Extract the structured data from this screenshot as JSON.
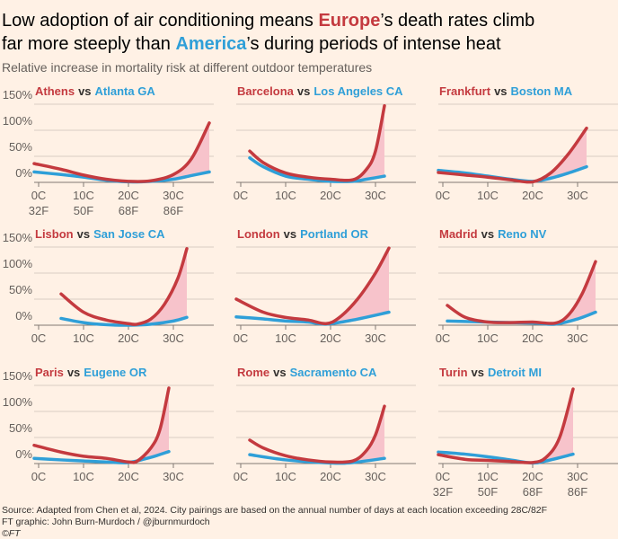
{
  "title": [
    [
      "Low adoption of air conditioning means ",
      "Europe",
      "’s death rates climb"
    ],
    [
      "far more steeply than ",
      "America",
      "’s during periods of intense heat"
    ]
  ],
  "subtitle": "Relative increase in mortality risk at different outdoor temperatures",
  "footer": [
    "Source: Adapted from Chen et al, 2024. City pairings are based on the annual number of days at each location exceeding 28C/82F",
    "FT graphic: John Burn-Murdoch / @jburnmurdoch",
    "©FT"
  ],
  "chart_data": [
    {
      "type": "line",
      "vs": "vs",
      "xlim": [
        -1,
        39
      ],
      "ylim": [
        0,
        150
      ],
      "xticks": [
        {
          "value": 0,
          "label": "0C"
        },
        {
          "value": 10,
          "label": "10C"
        },
        {
          "value": 20,
          "label": "20C"
        },
        {
          "value": 30,
          "label": "30C"
        }
      ],
      "xticks_f": [
        {
          "value": 0,
          "label": "32F"
        },
        {
          "value": 10,
          "label": "50F"
        },
        {
          "value": 20,
          "label": "68F"
        },
        {
          "value": 30,
          "label": "86F"
        }
      ],
      "yticks": [
        {
          "value": 0,
          "label": "0%"
        },
        {
          "value": 50,
          "label": "50%"
        },
        {
          "value": 100,
          "label": "100%"
        },
        {
          "value": 150,
          "label": "150%"
        }
      ],
      "series": [
        {
          "name": "Athens",
          "color": "#c43a3f",
          "x": [
            -1,
            5,
            10,
            15,
            20,
            25,
            30,
            34,
            38
          ],
          "values": [
            36,
            25,
            14,
            6,
            2,
            3,
            15,
            45,
            114
          ]
        },
        {
          "name": "Atlanta GA",
          "color": "#2f9fd8",
          "x": [
            -1,
            5,
            10,
            15,
            20,
            25,
            30,
            34,
            38
          ],
          "values": [
            20,
            15,
            10,
            4,
            1,
            2,
            6,
            13,
            20
          ]
        }
      ]
    },
    {
      "type": "line",
      "vs": "vs",
      "xlim": [
        -1,
        39
      ],
      "ylim": [
        0,
        150
      ],
      "xticks": [
        {
          "value": 0,
          "label": "0C"
        },
        {
          "value": 10,
          "label": "10C"
        },
        {
          "value": 20,
          "label": "20C"
        },
        {
          "value": 30,
          "label": "30C"
        }
      ],
      "yticks": [
        0,
        50,
        100,
        150
      ],
      "series": [
        {
          "name": "Barcelona",
          "color": "#c43a3f",
          "x": [
            2,
            5,
            10,
            15,
            20,
            25,
            28,
            30,
            32
          ],
          "values": [
            60,
            38,
            18,
            10,
            6,
            5,
            25,
            60,
            147
          ]
        },
        {
          "name": "Los Angeles CA",
          "color": "#2f9fd8",
          "x": [
            2,
            5,
            10,
            15,
            20,
            25,
            28,
            32
          ],
          "values": [
            47,
            30,
            12,
            6,
            2,
            2,
            6,
            12
          ]
        }
      ]
    },
    {
      "type": "line",
      "vs": "vs",
      "xlim": [
        -1,
        39
      ],
      "ylim": [
        0,
        150
      ],
      "xticks": [
        {
          "value": 0,
          "label": "0C"
        },
        {
          "value": 10,
          "label": "10C"
        },
        {
          "value": 20,
          "label": "20C"
        },
        {
          "value": 30,
          "label": "30C"
        }
      ],
      "yticks": [
        0,
        50,
        100,
        150
      ],
      "series": [
        {
          "name": "Frankfurt",
          "color": "#c43a3f",
          "x": [
            -1,
            5,
            10,
            15,
            20,
            24,
            28,
            32
          ],
          "values": [
            19,
            14,
            10,
            5,
            1,
            18,
            55,
            104
          ]
        },
        {
          "name": "Boston MA",
          "color": "#2f9fd8",
          "x": [
            -1,
            5,
            10,
            15,
            20,
            24,
            28,
            32
          ],
          "values": [
            23,
            18,
            12,
            6,
            2,
            8,
            18,
            30
          ]
        }
      ]
    },
    {
      "type": "line",
      "vs": "vs",
      "xlim": [
        -1,
        39
      ],
      "ylim": [
        0,
        150
      ],
      "xticks": [
        {
          "value": 0,
          "label": "0C"
        },
        {
          "value": 10,
          "label": "10C"
        },
        {
          "value": 20,
          "label": "20C"
        },
        {
          "value": 30,
          "label": "30C"
        }
      ],
      "yticks": [
        {
          "value": 0,
          "label": "0%"
        },
        {
          "value": 50,
          "label": "50%"
        },
        {
          "value": 100,
          "label": "100%"
        },
        {
          "value": 150,
          "label": "150%"
        }
      ],
      "series": [
        {
          "name": "Lisbon",
          "color": "#c43a3f",
          "x": [
            5,
            10,
            15,
            20,
            22,
            25,
            28,
            31,
            33
          ],
          "values": [
            60,
            25,
            10,
            3,
            2,
            12,
            40,
            90,
            147
          ]
        },
        {
          "name": "San Jose CA",
          "color": "#2f9fd8",
          "x": [
            5,
            10,
            15,
            20,
            25,
            30,
            33
          ],
          "values": [
            13,
            5,
            1,
            0,
            2,
            8,
            15
          ]
        }
      ]
    },
    {
      "type": "line",
      "vs": "vs",
      "xlim": [
        -1,
        39
      ],
      "ylim": [
        0,
        150
      ],
      "xticks": [
        {
          "value": 0,
          "label": "0C"
        },
        {
          "value": 10,
          "label": "10C"
        },
        {
          "value": 20,
          "label": "20C"
        },
        {
          "value": 30,
          "label": "30C"
        }
      ],
      "yticks": [
        0,
        50,
        100,
        150
      ],
      "series": [
        {
          "name": "London",
          "color": "#c43a3f",
          "x": [
            -1,
            5,
            10,
            15,
            19,
            22,
            26,
            30,
            33
          ],
          "values": [
            50,
            25,
            15,
            10,
            3,
            15,
            50,
            100,
            148
          ]
        },
        {
          "name": "Portland OR",
          "color": "#2f9fd8",
          "x": [
            -1,
            5,
            10,
            15,
            19,
            25,
            33
          ],
          "values": [
            16,
            12,
            8,
            6,
            2,
            10,
            25
          ]
        }
      ]
    },
    {
      "type": "line",
      "vs": "vs",
      "xlim": [
        -1,
        39
      ],
      "ylim": [
        0,
        150
      ],
      "xticks": [
        {
          "value": 0,
          "label": "0C"
        },
        {
          "value": 10,
          "label": "10C"
        },
        {
          "value": 20,
          "label": "20C"
        },
        {
          "value": 30,
          "label": "30C"
        }
      ],
      "yticks": [
        0,
        50,
        100,
        150
      ],
      "series": [
        {
          "name": "Madrid",
          "color": "#c43a3f",
          "x": [
            1,
            5,
            10,
            15,
            20,
            25,
            28,
            31,
            34
          ],
          "values": [
            38,
            15,
            6,
            5,
            6,
            4,
            20,
            60,
            122
          ]
        },
        {
          "name": "Reno NV",
          "color": "#2f9fd8",
          "x": [
            1,
            10,
            20,
            25,
            30,
            34
          ],
          "values": [
            8,
            6,
            4,
            2,
            12,
            25
          ]
        }
      ]
    },
    {
      "type": "line",
      "vs": "vs",
      "xlim": [
        -1,
        39
      ],
      "ylim": [
        0,
        150
      ],
      "xticks": [
        {
          "value": 0,
          "label": "0C"
        },
        {
          "value": 10,
          "label": "10C"
        },
        {
          "value": 20,
          "label": "20C"
        },
        {
          "value": 30,
          "label": "30C"
        }
      ],
      "yticks": [
        {
          "value": 0,
          "label": "0%"
        },
        {
          "value": 50,
          "label": "50%"
        },
        {
          "value": 100,
          "label": "100%"
        },
        {
          "value": 150,
          "label": "150%"
        }
      ],
      "series": [
        {
          "name": "Paris",
          "color": "#c43a3f",
          "x": [
            -1,
            5,
            10,
            15,
            20,
            22,
            25,
            27,
            29
          ],
          "values": [
            35,
            22,
            14,
            10,
            3,
            5,
            30,
            65,
            145
          ]
        },
        {
          "name": "Eugene OR",
          "color": "#2f9fd8",
          "x": [
            -1,
            5,
            10,
            15,
            20,
            25,
            29
          ],
          "values": [
            10,
            7,
            5,
            3,
            2,
            12,
            23
          ]
        }
      ]
    },
    {
      "type": "line",
      "vs": "vs",
      "xlim": [
        -1,
        39
      ],
      "ylim": [
        0,
        150
      ],
      "xticks": [
        {
          "value": 0,
          "label": "0C"
        },
        {
          "value": 10,
          "label": "10C"
        },
        {
          "value": 20,
          "label": "20C"
        },
        {
          "value": 30,
          "label": "30C"
        }
      ],
      "yticks": [
        0,
        50,
        100,
        150
      ],
      "series": [
        {
          "name": "Rome",
          "color": "#c43a3f",
          "x": [
            2,
            5,
            10,
            15,
            20,
            25,
            28,
            30,
            32
          ],
          "values": [
            45,
            30,
            15,
            7,
            3,
            5,
            25,
            55,
            110
          ]
        },
        {
          "name": "Sacramento CA",
          "color": "#2f9fd8",
          "x": [
            2,
            10,
            20,
            25,
            32
          ],
          "values": [
            17,
            7,
            1,
            2,
            10
          ]
        }
      ]
    },
    {
      "type": "line",
      "vs": "vs",
      "xlim": [
        -1,
        39
      ],
      "ylim": [
        0,
        150
      ],
      "xticks": [
        {
          "value": 0,
          "label": "0C"
        },
        {
          "value": 10,
          "label": "10C"
        },
        {
          "value": 20,
          "label": "20C"
        },
        {
          "value": 30,
          "label": "30C"
        }
      ],
      "xticks_f": [
        {
          "value": 0,
          "label": "32F"
        },
        {
          "value": 10,
          "label": "50F"
        },
        {
          "value": 20,
          "label": "68F"
        },
        {
          "value": 30,
          "label": "86F"
        }
      ],
      "yticks": [
        0,
        50,
        100,
        150
      ],
      "series": [
        {
          "name": "Turin",
          "color": "#c43a3f",
          "x": [
            -1,
            5,
            10,
            15,
            20,
            23,
            26,
            29
          ],
          "values": [
            17,
            8,
            6,
            4,
            2,
            12,
            50,
            143
          ]
        },
        {
          "name": "Detroit MI",
          "color": "#2f9fd8",
          "x": [
            -1,
            5,
            10,
            15,
            20,
            23,
            29
          ],
          "values": [
            22,
            18,
            13,
            7,
            1,
            5,
            18
          ]
        }
      ]
    }
  ]
}
